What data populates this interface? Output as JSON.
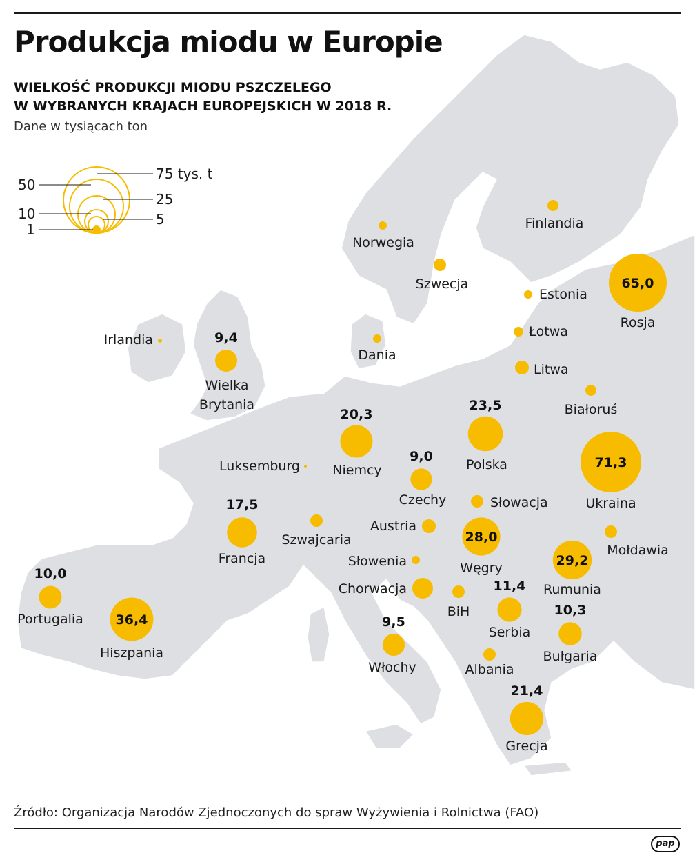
{
  "title": "Produkcja miodu w Europie",
  "subtitle_line1": "WIELKOŚĆ PRODUKCJI MIODU PSZCZELEGO",
  "subtitle_line2": "W WYBRANYCH KRAJACH EUROPEJSKICH W 2018 R.",
  "unit_note": "Dane w tysiącach ton",
  "legend": {
    "label_75": "75 tys. t",
    "label_50": "50",
    "label_25": "25",
    "label_10": "10",
    "label_5": "5",
    "label_1": "1"
  },
  "colors": {
    "bubble": "#F7BC00",
    "land": "#DEDFE2",
    "sea": "#FFFFFF",
    "border": "#FFFFFF"
  },
  "countries": [
    {
      "name": "Rosja",
      "value": 65.0,
      "value_label": "65,0"
    },
    {
      "name": "Ukraina",
      "value": 71.3,
      "value_label": "71,3"
    },
    {
      "name": "Hiszpania",
      "value": 36.4,
      "value_label": "36,4"
    },
    {
      "name": "Rumunia",
      "value": 29.2,
      "value_label": "29,2"
    },
    {
      "name": "Węgry",
      "value": 28.0,
      "value_label": "28,0"
    },
    {
      "name": "Polska",
      "value": 23.5,
      "value_label": "23,5"
    },
    {
      "name": "Grecja",
      "value": 21.4,
      "value_label": "21,4"
    },
    {
      "name": "Niemcy",
      "value": 20.3,
      "value_label": "20,3"
    },
    {
      "name": "Francja",
      "value": 17.5,
      "value_label": "17,5"
    },
    {
      "name": "Serbia",
      "value": 11.4,
      "value_label": "11,4"
    },
    {
      "name": "Bułgaria",
      "value": 10.3,
      "value_label": "10,3"
    },
    {
      "name": "Portugalia",
      "value": 10.0,
      "value_label": "10,0"
    },
    {
      "name": "Włochy",
      "value": 9.5,
      "value_label": "9,5"
    },
    {
      "name": "Wielka Brytania",
      "value": 9.4,
      "value_label": "9,4"
    },
    {
      "name": "Czechy",
      "value": 9.0,
      "value_label": "9,0"
    },
    {
      "name": "Chorwacja",
      "value": null,
      "value_label": null
    },
    {
      "name": "Litwa",
      "value": null,
      "value_label": null
    },
    {
      "name": "Słowacja",
      "value": null,
      "value_label": null
    },
    {
      "name": "Austria",
      "value": null,
      "value_label": null
    },
    {
      "name": "BiH",
      "value": null,
      "value_label": null
    },
    {
      "name": "Albania",
      "value": null,
      "value_label": null
    },
    {
      "name": "Mołdawia",
      "value": null,
      "value_label": null
    },
    {
      "name": "Szwajcaria",
      "value": null,
      "value_label": null
    },
    {
      "name": "Szwecja",
      "value": null,
      "value_label": null
    },
    {
      "name": "Finlandia",
      "value": null,
      "value_label": null
    },
    {
      "name": "Białoruś",
      "value": null,
      "value_label": null
    },
    {
      "name": "Norwegia",
      "value": null,
      "value_label": null
    },
    {
      "name": "Łotwa",
      "value": null,
      "value_label": null
    },
    {
      "name": "Słowenia",
      "value": null,
      "value_label": null
    },
    {
      "name": "Estonia",
      "value": null,
      "value_label": null
    },
    {
      "name": "Dania",
      "value": null,
      "value_label": null
    },
    {
      "name": "Irlandia",
      "value": null,
      "value_label": null
    },
    {
      "name": "Luksemburg",
      "value": null,
      "value_label": null
    }
  ],
  "source": "Źródło: Organizacja Narodów Zjednoczonych do spraw Wyżywienia i Rolnictwa (FAO)",
  "logo_text": "pap"
}
